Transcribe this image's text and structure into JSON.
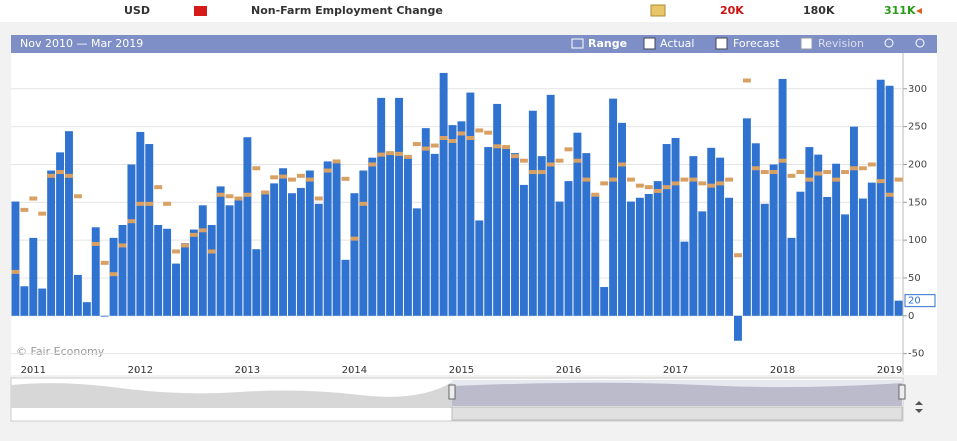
{
  "header": {
    "currency": "USD",
    "event": "Non-Farm Employment Change",
    "actual": "20K",
    "forecast": "180K",
    "previous": "311K"
  },
  "toolbar": {
    "period": "Nov 2010 — Mar 2019",
    "range": "Range",
    "revision": "Revision"
  },
  "watermark": "© Fair Economy",
  "chart_data": {
    "type": "bar",
    "categories": [
      null,
      null,
      "2011",
      null,
      null,
      null,
      null,
      null,
      null,
      null,
      null,
      null,
      null,
      null,
      "2012",
      null,
      null,
      null,
      null,
      null,
      null,
      null,
      null,
      null,
      null,
      null,
      "2013",
      null,
      null,
      null,
      null,
      null,
      null,
      null,
      null,
      null,
      null,
      null,
      "2014",
      null,
      null,
      null,
      null,
      null,
      null,
      null,
      null,
      null,
      null,
      null,
      "2015",
      null,
      null,
      null,
      null,
      null,
      null,
      null,
      null,
      null,
      null,
      null,
      "2016",
      null,
      null,
      null,
      null,
      null,
      null,
      null,
      null,
      null,
      null,
      null,
      "2017",
      null,
      null,
      null,
      null,
      null,
      null,
      null,
      null,
      null,
      null,
      null,
      "2018",
      null,
      null,
      null,
      null,
      null,
      null,
      null,
      null,
      null,
      null,
      null,
      "2019",
      null
    ],
    "series": [
      {
        "name": "Actual",
        "color": "#2f72d0",
        "values": [
          151,
          39,
          103,
          36,
          192,
          216,
          244,
          54,
          18,
          117,
          0,
          103,
          120,
          200,
          243,
          227,
          120,
          115,
          69,
          96,
          114,
          146,
          120,
          171,
          146,
          155,
          236,
          88,
          165,
          175,
          195,
          162,
          169,
          192,
          148,
          204,
          203,
          74,
          162,
          192,
          209,
          288,
          217,
          288,
          209,
          142,
          248,
          214,
          321,
          252,
          257,
          295,
          126,
          223,
          280,
          223,
          215,
          173,
          271,
          211,
          292,
          151,
          178,
          242,
          215,
          160,
          38,
          287,
          255,
          151,
          156,
          161,
          178,
          227,
          235,
          98,
          211,
          138,
          222,
          209,
          156,
          -33,
          261,
          228,
          148,
          200,
          313,
          103,
          164,
          223,
          213,
          157,
          201,
          134,
          250,
          155,
          176,
          312,
          304,
          20
        ]
      },
      {
        "name": "Forecast",
        "color": "#d9a064",
        "values": [
          58,
          140,
          155,
          135,
          185,
          190,
          185,
          158,
          null,
          95,
          70,
          55,
          93,
          125,
          148,
          148,
          170,
          148,
          85,
          93,
          107,
          113,
          85,
          160,
          158,
          155,
          160,
          195,
          163,
          183,
          184,
          180,
          185,
          180,
          155,
          192,
          204,
          181,
          102,
          148,
          200,
          213,
          215,
          214,
          210,
          227,
          221,
          225,
          235,
          231,
          241,
          235,
          245,
          242,
          224,
          223,
          211,
          205,
          190,
          190,
          200,
          205,
          220,
          205,
          180,
          160,
          175,
          180,
          200,
          180,
          172,
          170,
          165,
          170,
          175,
          180,
          180,
          175,
          172,
          175,
          180,
          80,
          311,
          195,
          190,
          190,
          205,
          185,
          190,
          180,
          188,
          190,
          180,
          190,
          195,
          195,
          200,
          178,
          160,
          180
        ]
      }
    ],
    "ylim": [
      -69,
      346
    ],
    "yticks": [
      -50,
      0,
      50,
      100,
      150,
      200,
      250,
      300
    ],
    "grid": true
  }
}
